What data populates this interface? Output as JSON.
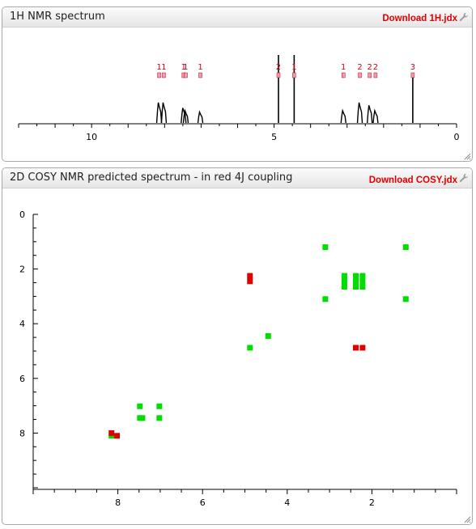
{
  "panel1": {
    "title": "1H NMR spectrum",
    "download_label": "Download 1H.jdx"
  },
  "panel2": {
    "title": "2D COSY NMR predicted spectrum - in red 4J coupling",
    "download_label": "Download COSY.jdx"
  },
  "colors": {
    "download_red": "#e00000",
    "peak_red": "#d8000f",
    "marker_pink": "#e0a0b8",
    "green": "#00dd00",
    "red_cross": "#e00000"
  },
  "icons": [
    "wrench-icon",
    "resize-grip-icon"
  ],
  "chart_data": [
    {
      "type": "line",
      "title": "1H NMR spectrum",
      "x_axis": {
        "range": [
          12,
          0
        ],
        "reversed": true,
        "tick_labels": [
          "10",
          "5",
          "0"
        ],
        "tick_values": [
          10,
          5,
          0
        ]
      },
      "peaks": [
        {
          "ppm": 8.15,
          "height": 0.3,
          "label": "1"
        },
        {
          "ppm": 8.02,
          "height": 0.3,
          "label": "1"
        },
        {
          "ppm": 7.48,
          "height": 0.22,
          "label": "1"
        },
        {
          "ppm": 7.42,
          "height": 0.18,
          "label": "1"
        },
        {
          "ppm": 7.02,
          "height": 0.16,
          "label": "1"
        },
        {
          "ppm": 4.88,
          "height": 1.0,
          "label": "2"
        },
        {
          "ppm": 4.45,
          "height": 1.0,
          "label": "1"
        },
        {
          "ppm": 3.1,
          "height": 0.18,
          "label": "1"
        },
        {
          "ppm": 2.65,
          "height": 0.3,
          "label": "2"
        },
        {
          "ppm": 2.38,
          "height": 0.26,
          "label": "2"
        },
        {
          "ppm": 2.22,
          "height": 0.18,
          "label": "2"
        },
        {
          "ppm": 1.2,
          "height": 0.7,
          "label": "3"
        }
      ]
    },
    {
      "type": "scatter",
      "title": "2D COSY NMR predicted spectrum - in red 4J coupling",
      "x_axis": {
        "range": [
          10,
          0
        ],
        "reversed": true,
        "tick_labels": [
          "8",
          "6",
          "4",
          "2"
        ],
        "tick_values": [
          8,
          6,
          4,
          2
        ]
      },
      "y_axis": {
        "range": [
          0,
          10
        ],
        "tick_labels": [
          "0",
          "2",
          "4",
          "6",
          "8"
        ],
        "tick_values": [
          0,
          2,
          4,
          6,
          8
        ]
      },
      "series": [
        {
          "color": "green",
          "points": [
            [
              3.1,
              1.2
            ],
            [
              1.2,
              1.2
            ],
            [
              2.65,
              2.25
            ],
            [
              2.38,
              2.25
            ],
            [
              2.22,
              2.25
            ],
            [
              2.65,
              2.45
            ],
            [
              2.38,
              2.45
            ],
            [
              2.22,
              2.45
            ],
            [
              2.65,
              2.65
            ],
            [
              2.38,
              2.65
            ],
            [
              2.22,
              2.65
            ],
            [
              3.1,
              3.1
            ],
            [
              1.2,
              3.1
            ],
            [
              4.45,
              4.45
            ],
            [
              4.88,
              4.88
            ],
            [
              7.48,
              7.02
            ],
            [
              7.02,
              7.02
            ],
            [
              7.48,
              7.45
            ],
            [
              7.42,
              7.45
            ],
            [
              7.02,
              7.45
            ],
            [
              8.15,
              8.1
            ]
          ]
        },
        {
          "color": "red",
          "points": [
            [
              4.88,
              2.25
            ],
            [
              4.88,
              2.45
            ],
            [
              2.38,
              4.88
            ],
            [
              2.22,
              4.88
            ],
            [
              8.15,
              8.0
            ],
            [
              8.02,
              8.1
            ]
          ]
        }
      ]
    }
  ]
}
